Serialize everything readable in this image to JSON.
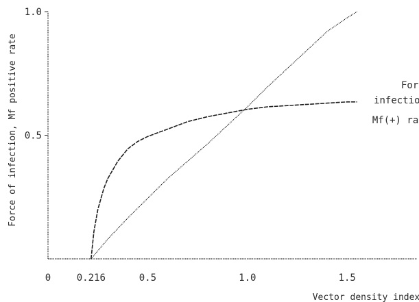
{
  "chart_data": {
    "type": "line",
    "title": "",
    "xlabel": "Vector density index",
    "ylabel": "Force of infection, Mf positive rate",
    "xlim": [
      0,
      1.85
    ],
    "ylim": [
      0,
      1.0
    ],
    "x_ticks": [
      {
        "value": 0,
        "label": "0"
      },
      {
        "value": 0.216,
        "label": "0.216"
      },
      {
        "value": 0.5,
        "label": "0.5"
      },
      {
        "value": 1.0,
        "label": "1.0"
      },
      {
        "value": 1.5,
        "label": "1.5"
      }
    ],
    "y_ticks": [
      {
        "value": 0.5,
        "label": "0.5"
      },
      {
        "value": 1.0,
        "label": "1.0"
      }
    ],
    "grid": false,
    "series": [
      {
        "name": "Force of infection",
        "style": "dotted",
        "x": [
          0.216,
          0.3,
          0.4,
          0.5,
          0.6,
          0.7,
          0.8,
          0.9,
          1.0,
          1.1,
          1.2,
          1.3,
          1.4,
          1.5,
          1.55
        ],
        "y": [
          0.0,
          0.08,
          0.165,
          0.245,
          0.325,
          0.395,
          0.465,
          0.54,
          0.615,
          0.695,
          0.77,
          0.845,
          0.92,
          0.975,
          1.0
        ]
      },
      {
        "name": "Mf(+) rate",
        "style": "dashed",
        "x": [
          0.216,
          0.23,
          0.25,
          0.28,
          0.3,
          0.35,
          0.4,
          0.45,
          0.5,
          0.55,
          0.6,
          0.7,
          0.8,
          0.9,
          1.0,
          1.1,
          1.2,
          1.3,
          1.4,
          1.5,
          1.55
        ],
        "y": [
          0.0,
          0.11,
          0.2,
          0.285,
          0.325,
          0.395,
          0.445,
          0.475,
          0.495,
          0.51,
          0.525,
          0.555,
          0.575,
          0.59,
          0.605,
          0.615,
          0.62,
          0.625,
          0.63,
          0.635,
          0.635
        ]
      }
    ],
    "annotations": [
      {
        "lines": [
          "Force of",
          "infection"
        ],
        "series": "Force of infection"
      },
      {
        "lines": [
          "Mf(+) rate"
        ],
        "series": "Mf(+) rate"
      }
    ]
  }
}
